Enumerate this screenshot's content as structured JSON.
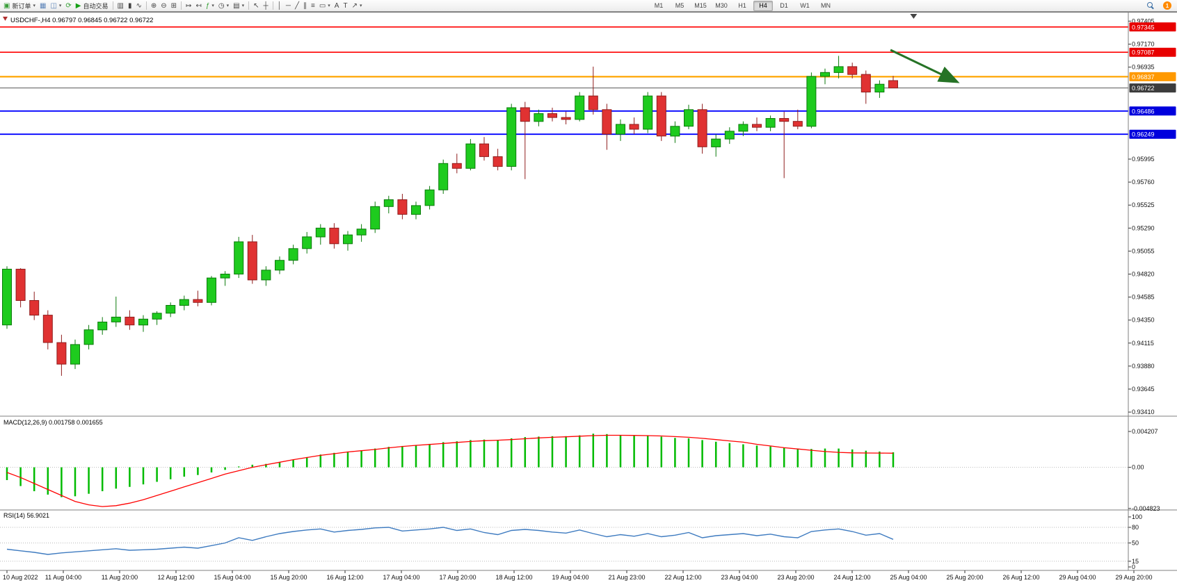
{
  "colors": {
    "candle_up": "#1ecb1e",
    "candle_up_border": "#0b7a0b",
    "candle_down": "#e03232",
    "candle_down_border": "#8f1d1d",
    "macd_hist": "#00bb00",
    "macd_signal": "#ff0000",
    "rsi_line": "#3e7bc0",
    "level_dotted": "#b9b9b9",
    "axis_text": "#111111",
    "separator": "#7f7f7f",
    "arrow_green": "#267326"
  },
  "toolbar": {
    "buttons": [
      {
        "name": "new-order-button",
        "glyph": "▣",
        "glyph_color": "#3a9e3a",
        "label": "新订单",
        "caret": true
      },
      {
        "name": "new-chart-button",
        "glyph": "▦",
        "glyph_color": "#5b83b8"
      },
      {
        "name": "profiles-button",
        "glyph": "◫",
        "glyph_color": "#5b83b8",
        "caret": true
      },
      {
        "name": "refresh-button",
        "glyph": "⟳",
        "glyph_color": "#2f9e2f"
      },
      {
        "name": "autotrading-button",
        "glyph": "▶",
        "glyph_color": "#17a017",
        "label": "自动交易"
      },
      {
        "sep": true
      },
      {
        "name": "bars-chart-type-button",
        "glyph": "▥",
        "glyph_color": "#444444"
      },
      {
        "name": "candles-chart-type-button",
        "glyph": "▮",
        "glyph_color": "#444444"
      },
      {
        "name": "line-chart-type-button",
        "glyph": "∿",
        "glyph_color": "#444444"
      },
      {
        "sep": true
      },
      {
        "name": "zoom-in-button",
        "glyph": "⊕",
        "glyph_color": "#444444"
      },
      {
        "name": "zoom-out-button",
        "glyph": "⊖",
        "glyph_color": "#444444"
      },
      {
        "name": "tile-windows-button",
        "glyph": "⊞",
        "glyph_color": "#444444"
      },
      {
        "sep": true
      },
      {
        "name": "auto-scroll-button",
        "glyph": "↦",
        "glyph_color": "#444444"
      },
      {
        "name": "chart-shift-button",
        "glyph": "↤",
        "glyph_color": "#444444"
      },
      {
        "name": "indicators-button",
        "glyph": "ƒ",
        "glyph_color": "#2f9e2f",
        "caret": true
      },
      {
        "name": "periods-button",
        "glyph": "◷",
        "glyph_color": "#444444",
        "caret": true
      },
      {
        "name": "templates-button",
        "glyph": "▤",
        "glyph_color": "#444444",
        "caret": true
      },
      {
        "sep": true
      },
      {
        "name": "cursor-button",
        "glyph": "↖",
        "glyph_color": "#444444"
      },
      {
        "name": "crosshair-button",
        "glyph": "┼",
        "glyph_color": "#444444"
      },
      {
        "sep": true
      },
      {
        "name": "vertical-line-button",
        "glyph": "│",
        "glyph_color": "#444444"
      },
      {
        "name": "horizontal-line-button",
        "glyph": "─",
        "glyph_color": "#444444"
      },
      {
        "name": "trendline-button",
        "glyph": "╱",
        "glyph_color": "#444444"
      },
      {
        "name": "channel-button",
        "glyph": "∥",
        "glyph_color": "#444444"
      },
      {
        "name": "fibonacci-button",
        "glyph": "≡",
        "glyph_color": "#444444"
      },
      {
        "name": "shapes-button",
        "glyph": "▭",
        "glyph_color": "#444444",
        "caret": true
      },
      {
        "name": "text-button",
        "glyph": "A",
        "glyph_color": "#444444"
      },
      {
        "name": "label-button",
        "glyph": "T",
        "glyph_color": "#444444"
      },
      {
        "name": "arrows-button",
        "glyph": "↗",
        "glyph_color": "#444444",
        "caret": true
      }
    ],
    "timeframes": [
      "M1",
      "M5",
      "M15",
      "M30",
      "H1",
      "H4",
      "D1",
      "W1",
      "MN"
    ],
    "active_timeframe": "H4",
    "notification_badge": "1"
  },
  "chart": {
    "title": "USDCHF-,H4  0.96797 0.96845 0.96722 0.96722",
    "price_ticks": [
      "0.97405",
      "0.97170",
      "0.96935",
      "0.95995",
      "0.95760",
      "0.95525",
      "0.95290",
      "0.95055",
      "0.94820",
      "0.94585",
      "0.94350",
      "0.94115",
      "0.93880",
      "0.93645",
      "0.93410"
    ],
    "hlines": [
      {
        "name": "resistance-line-1",
        "price": 0.97345,
        "color": "#ff0000",
        "width": 1.6,
        "badge": "0.97345",
        "badge_bg": "#e80000"
      },
      {
        "name": "resistance-line-2",
        "price": 0.97087,
        "color": "#ff0000",
        "width": 1.6,
        "badge": "0.97087",
        "badge_bg": "#e80000"
      },
      {
        "name": "orange-level-line",
        "price": 0.96837,
        "color": "#ffa500",
        "width": 2.2,
        "badge": "0.96837",
        "badge_bg": "#ff9900"
      },
      {
        "name": "current-price-line",
        "price": 0.96722,
        "color": "#555555",
        "width": 1,
        "badge": "0.96722",
        "badge_bg": "#3c3c3c"
      },
      {
        "name": "support-line-1",
        "price": 0.96486,
        "color": "#0000ff",
        "width": 1.8,
        "badge": "0.96486",
        "badge_bg": "#0000dd"
      },
      {
        "name": "support-line-2",
        "price": 0.96249,
        "color": "#0000ff",
        "width": 1.8,
        "badge": "0.96249",
        "badge_bg": "#0000dd"
      }
    ]
  },
  "indicators": {
    "macd": {
      "label": "MACD(12,26,9) 0.001758 0.001655",
      "scale": [
        "0.004207",
        "0.00",
        "-0.004823"
      ],
      "scale_values": [
        0.004207,
        0,
        -0.004823
      ]
    },
    "rsi": {
      "label": "RSI(14) 56.9021",
      "scale": [
        "100",
        "80",
        "50",
        "15",
        "0"
      ],
      "scale_values": [
        100,
        80,
        50,
        15,
        0
      ],
      "levels": [
        80,
        50,
        15
      ]
    }
  },
  "chart_data": {
    "type": "candlestick",
    "symbol": "USDCHF",
    "timeframe": "H4",
    "y_range": [
      0.9337,
      0.975
    ],
    "current_bar": {
      "open": 0.96797,
      "high": 0.96845,
      "low": 0.96722,
      "close": 0.96722
    },
    "x_labels": [
      "10 Aug 2022",
      "11 Aug 04:00",
      "11 Aug 20:00",
      "12 Aug 12:00",
      "15 Aug 04:00",
      "15 Aug 20:00",
      "16 Aug 12:00",
      "17 Aug 04:00",
      "17 Aug 20:00",
      "18 Aug 12:00",
      "19 Aug 04:00",
      "21 Aug 23:00",
      "22 Aug 12:00",
      "23 Aug 04:00",
      "23 Aug 20:00",
      "24 Aug 12:00",
      "25 Aug 04:00",
      "25 Aug 20:00",
      "26 Aug 12:00",
      "29 Aug 04:00",
      "29 Aug 20:00"
    ],
    "ohlc": [
      [
        0.943,
        0.949,
        0.9426,
        0.9487
      ],
      [
        0.9487,
        0.9488,
        0.9448,
        0.9455
      ],
      [
        0.9455,
        0.9464,
        0.9435,
        0.944
      ],
      [
        0.944,
        0.9445,
        0.9405,
        0.9412
      ],
      [
        0.9412,
        0.942,
        0.9378,
        0.939
      ],
      [
        0.939,
        0.9415,
        0.9385,
        0.941
      ],
      [
        0.941,
        0.943,
        0.9405,
        0.9425
      ],
      [
        0.9425,
        0.9438,
        0.942,
        0.9433
      ],
      [
        0.9433,
        0.9459,
        0.9428,
        0.9438
      ],
      [
        0.9438,
        0.9445,
        0.9425,
        0.943
      ],
      [
        0.943,
        0.944,
        0.9423,
        0.9436
      ],
      [
        0.9436,
        0.9444,
        0.943,
        0.9442
      ],
      [
        0.9442,
        0.9453,
        0.9438,
        0.945
      ],
      [
        0.945,
        0.946,
        0.9445,
        0.9456
      ],
      [
        0.9456,
        0.9465,
        0.9449,
        0.9453
      ],
      [
        0.9453,
        0.948,
        0.945,
        0.9478
      ],
      [
        0.9478,
        0.9485,
        0.947,
        0.9482
      ],
      [
        0.9482,
        0.952,
        0.9478,
        0.9515
      ],
      [
        0.9515,
        0.9522,
        0.9472,
        0.9476
      ],
      [
        0.9476,
        0.949,
        0.947,
        0.9486
      ],
      [
        0.9486,
        0.95,
        0.9482,
        0.9496
      ],
      [
        0.9496,
        0.9512,
        0.9492,
        0.9508
      ],
      [
        0.9508,
        0.9525,
        0.9503,
        0.952
      ],
      [
        0.952,
        0.9533,
        0.9512,
        0.9529
      ],
      [
        0.9529,
        0.9534,
        0.9508,
        0.9513
      ],
      [
        0.9513,
        0.9526,
        0.9506,
        0.9522
      ],
      [
        0.9522,
        0.9533,
        0.9515,
        0.9528
      ],
      [
        0.9528,
        0.9556,
        0.9524,
        0.9551
      ],
      [
        0.9551,
        0.9562,
        0.9544,
        0.9558
      ],
      [
        0.9558,
        0.9564,
        0.9538,
        0.9543
      ],
      [
        0.9543,
        0.9556,
        0.9538,
        0.9552
      ],
      [
        0.9552,
        0.9572,
        0.9548,
        0.9568
      ],
      [
        0.9568,
        0.9599,
        0.9564,
        0.9595
      ],
      [
        0.9595,
        0.9605,
        0.9585,
        0.959
      ],
      [
        0.959,
        0.962,
        0.9588,
        0.9615
      ],
      [
        0.9615,
        0.9622,
        0.9598,
        0.9602
      ],
      [
        0.9602,
        0.961,
        0.9588,
        0.9592
      ],
      [
        0.9592,
        0.9656,
        0.9588,
        0.9652
      ],
      [
        0.9652,
        0.9658,
        0.9579,
        0.9638
      ],
      [
        0.9638,
        0.965,
        0.9633,
        0.9646
      ],
      [
        0.9646,
        0.9652,
        0.9638,
        0.9642
      ],
      [
        0.9642,
        0.9648,
        0.9635,
        0.964
      ],
      [
        0.964,
        0.9668,
        0.9638,
        0.9664
      ],
      [
        0.9664,
        0.9694,
        0.9645,
        0.965
      ],
      [
        0.965,
        0.9656,
        0.9609,
        0.9625
      ],
      [
        0.9625,
        0.964,
        0.9618,
        0.9635
      ],
      [
        0.9635,
        0.9642,
        0.9625,
        0.963
      ],
      [
        0.963,
        0.9668,
        0.9626,
        0.9664
      ],
      [
        0.9664,
        0.9668,
        0.9618,
        0.9623
      ],
      [
        0.9623,
        0.9638,
        0.9616,
        0.9633
      ],
      [
        0.9633,
        0.9655,
        0.963,
        0.965
      ],
      [
        0.965,
        0.9656,
        0.9605,
        0.9612
      ],
      [
        0.9612,
        0.9625,
        0.9602,
        0.962
      ],
      [
        0.962,
        0.9632,
        0.9615,
        0.9628
      ],
      [
        0.9628,
        0.9638,
        0.9623,
        0.9635
      ],
      [
        0.9635,
        0.9642,
        0.9628,
        0.9632
      ],
      [
        0.9632,
        0.9644,
        0.9628,
        0.9641
      ],
      [
        0.9641,
        0.9648,
        0.958,
        0.9638
      ],
      [
        0.9638,
        0.965,
        0.963,
        0.9633
      ],
      [
        0.9633,
        0.9688,
        0.9631,
        0.9684
      ],
      [
        0.9684,
        0.9692,
        0.9676,
        0.9688
      ],
      [
        0.9688,
        0.9705,
        0.9682,
        0.9694
      ],
      [
        0.9694,
        0.9698,
        0.9682,
        0.9686
      ],
      [
        0.9686,
        0.969,
        0.9656,
        0.9668
      ],
      [
        0.9668,
        0.968,
        0.9662,
        0.9676
      ],
      [
        0.96797,
        0.96845,
        0.96722,
        0.96722
      ]
    ],
    "series": [
      {
        "name": "MACD histogram",
        "values": [
          -0.0015,
          -0.0022,
          -0.0028,
          -0.0032,
          -0.0035,
          -0.0034,
          -0.0031,
          -0.0028,
          -0.0025,
          -0.0023,
          -0.002,
          -0.0017,
          -0.0014,
          -0.0011,
          -0.0009,
          -0.0006,
          -0.0003,
          0.0001,
          0.0003,
          0.0004,
          0.0006,
          0.0009,
          0.0012,
          0.0015,
          0.0017,
          0.00185,
          0.002,
          0.0022,
          0.0024,
          0.0025,
          0.0026,
          0.00275,
          0.00295,
          0.00305,
          0.0032,
          0.00325,
          0.0032,
          0.0034,
          0.00355,
          0.0036,
          0.00365,
          0.00365,
          0.00375,
          0.00395,
          0.0039,
          0.00375,
          0.0037,
          0.00368,
          0.0036,
          0.00345,
          0.0034,
          0.0032,
          0.003,
          0.00285,
          0.0027,
          0.00255,
          0.00245,
          0.0023,
          0.00215,
          0.00215,
          0.0022,
          0.0022,
          0.0021,
          0.00195,
          0.00185,
          0.00176
        ]
      },
      {
        "name": "MACD signal",
        "values": [
          -0.0006,
          -0.0012,
          -0.0019,
          -0.0026,
          -0.0033,
          -0.004,
          -0.0044,
          -0.0046,
          -0.0045,
          -0.0042,
          -0.0038,
          -0.0033,
          -0.0028,
          -0.0023,
          -0.0018,
          -0.0013,
          -0.0008,
          -0.0004,
          0.0,
          0.0003,
          0.0006,
          0.0009,
          0.00115,
          0.0014,
          0.0016,
          0.0018,
          0.00195,
          0.0021,
          0.00228,
          0.00245,
          0.00258,
          0.00268,
          0.0028,
          0.00292,
          0.00303,
          0.00312,
          0.00318,
          0.00325,
          0.00335,
          0.00345,
          0.00352,
          0.00358,
          0.00365,
          0.00372,
          0.00376,
          0.00376,
          0.00374,
          0.00372,
          0.00368,
          0.0036,
          0.00352,
          0.0034,
          0.00325,
          0.0031,
          0.00295,
          0.0027,
          0.0025,
          0.0023,
          0.00215,
          0.002,
          0.00185,
          0.00175,
          0.0017,
          0.00168,
          0.00167,
          0.00166
        ]
      },
      {
        "name": "RSI(14)",
        "values": [
          38,
          35,
          32,
          28,
          31,
          33,
          35,
          37,
          39,
          36,
          37,
          38,
          40,
          42,
          40,
          45,
          50,
          60,
          55,
          62,
          68,
          72,
          75,
          77,
          71,
          74,
          76,
          79,
          80,
          73,
          75,
          77,
          80,
          74,
          77,
          70,
          66,
          74,
          76,
          74,
          71,
          69,
          75,
          68,
          62,
          66,
          63,
          68,
          62,
          65,
          70,
          60,
          64,
          66,
          68,
          64,
          67,
          62,
          60,
          72,
          75,
          77,
          72,
          65,
          68,
          57
        ]
      }
    ],
    "annotations": [
      {
        "type": "arrow",
        "name": "trend-arrow",
        "from_bar": 64.8,
        "from_price": 0.9711,
        "to_bar": 69.6,
        "to_price": 0.9679,
        "color": "#267326"
      }
    ],
    "shift_marker_bar": 66.5
  }
}
